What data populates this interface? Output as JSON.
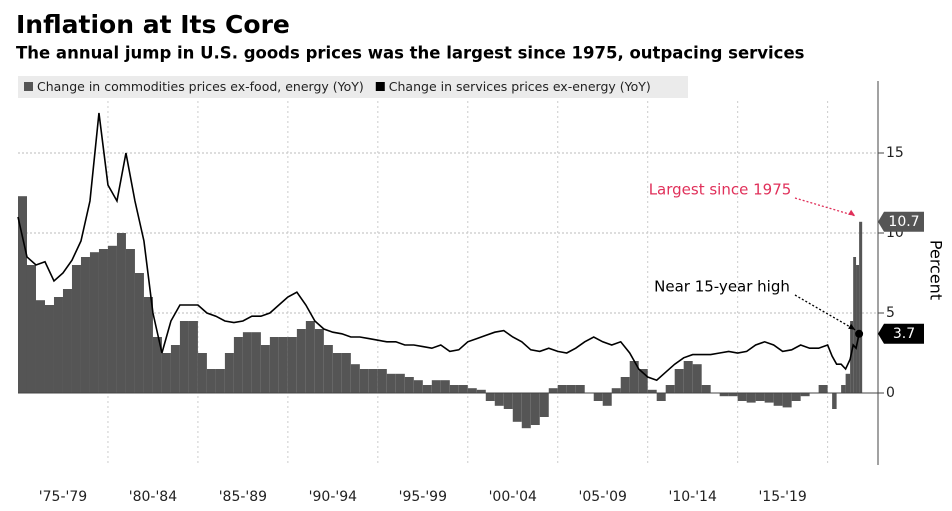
{
  "chart_data": {
    "type": "bar-line",
    "title": "Inflation at Its Core",
    "subtitle": "The annual jump in U.S. goods prices was the largest since 1975, outpacing services",
    "y_label": "Percent",
    "x": [
      1975.0,
      1975.5,
      1976.0,
      1976.5,
      1977.0,
      1977.5,
      1978.0,
      1978.5,
      1979.0,
      1979.5,
      1980.0,
      1980.5,
      1981.0,
      1981.5,
      1982.0,
      1982.5,
      1983.0,
      1983.5,
      1984.0,
      1984.5,
      1985.0,
      1985.5,
      1986.0,
      1986.5,
      1987.0,
      1987.5,
      1988.0,
      1988.5,
      1989.0,
      1989.5,
      1990.0,
      1990.5,
      1991.0,
      1991.5,
      1992.0,
      1992.5,
      1993.0,
      1993.5,
      1994.0,
      1994.5,
      1995.0,
      1995.5,
      1996.0,
      1996.5,
      1997.0,
      1997.5,
      1998.0,
      1998.5,
      1999.0,
      1999.5,
      2000.0,
      2000.5,
      2001.0,
      2001.5,
      2002.0,
      2002.5,
      2003.0,
      2003.5,
      2004.0,
      2004.5,
      2005.0,
      2005.5,
      2006.0,
      2006.5,
      2007.0,
      2007.5,
      2008.0,
      2008.5,
      2009.0,
      2009.5,
      2010.0,
      2010.5,
      2011.0,
      2011.5,
      2012.0,
      2012.5,
      2013.0,
      2013.5,
      2014.0,
      2014.5,
      2015.0,
      2015.5,
      2016.0,
      2016.5,
      2017.0,
      2017.5,
      2018.0,
      2018.5,
      2019.0,
      2019.5,
      2020.0,
      2020.25,
      2020.5,
      2020.75,
      2021.0,
      2021.25,
      2021.42,
      2021.58,
      2021.75
    ],
    "series": [
      {
        "name": "Change in commodities prices ex-food, energy (YoY)",
        "kind": "bar",
        "color": "#555555",
        "values": [
          12.3,
          8.0,
          5.8,
          5.5,
          6.0,
          6.5,
          8.0,
          8.5,
          8.8,
          9.0,
          9.2,
          10.0,
          9.0,
          7.5,
          6.0,
          3.5,
          2.5,
          3.0,
          4.5,
          4.5,
          2.5,
          1.5,
          1.5,
          2.5,
          3.5,
          3.8,
          3.8,
          3.0,
          3.5,
          3.5,
          3.5,
          4.0,
          4.5,
          4.0,
          3.0,
          2.5,
          2.5,
          1.8,
          1.5,
          1.5,
          1.5,
          1.2,
          1.2,
          1.0,
          0.8,
          0.5,
          0.8,
          0.8,
          0.5,
          0.5,
          0.3,
          0.2,
          -0.5,
          -0.8,
          -1.0,
          -1.8,
          -2.2,
          -2.0,
          -1.5,
          0.3,
          0.5,
          0.5,
          0.5,
          0.0,
          -0.5,
          -0.8,
          0.3,
          1.0,
          2.0,
          1.5,
          0.2,
          -0.5,
          0.5,
          1.5,
          2.0,
          1.8,
          0.5,
          0.0,
          -0.2,
          -0.2,
          -0.5,
          -0.6,
          -0.5,
          -0.6,
          -0.8,
          -0.9,
          -0.5,
          -0.2,
          0.0,
          0.5,
          0.0,
          -1.0,
          0.0,
          0.5,
          1.2,
          4.5,
          8.5,
          8.0,
          10.7
        ]
      },
      {
        "name": "Change in services prices ex-energy (YoY)",
        "kind": "line",
        "color": "#000000",
        "values": [
          11.0,
          8.5,
          8.0,
          8.2,
          7.0,
          7.5,
          8.3,
          9.5,
          12.0,
          17.5,
          13.0,
          12.0,
          15.0,
          12.0,
          9.5,
          5.0,
          2.5,
          4.5,
          5.5,
          5.5,
          5.5,
          5.0,
          4.8,
          4.5,
          4.4,
          4.5,
          4.8,
          4.8,
          5.0,
          5.5,
          6.0,
          6.3,
          5.5,
          4.5,
          4.0,
          3.8,
          3.7,
          3.5,
          3.5,
          3.4,
          3.3,
          3.2,
          3.2,
          3.0,
          3.0,
          2.9,
          2.8,
          3.0,
          2.6,
          2.7,
          3.2,
          3.4,
          3.6,
          3.8,
          3.9,
          3.5,
          3.2,
          2.7,
          2.6,
          2.8,
          2.6,
          2.5,
          2.8,
          3.2,
          3.5,
          3.2,
          3.0,
          3.2,
          2.5,
          1.5,
          1.0,
          0.8,
          1.3,
          1.8,
          2.2,
          2.4,
          2.4,
          2.4,
          2.5,
          2.6,
          2.5,
          2.6,
          3.0,
          3.2,
          3.0,
          2.6,
          2.7,
          3.0,
          2.8,
          2.8,
          3.0,
          2.3,
          1.8,
          1.8,
          1.5,
          2.1,
          3.0,
          2.8,
          3.7
        ]
      }
    ],
    "xlim": [
      1975,
      2022.8
    ],
    "xticks": [
      {
        "value": 1977.5,
        "label": "'75-'79"
      },
      {
        "value": 1982.5,
        "label": "'80-'84"
      },
      {
        "value": 1987.5,
        "label": "'85-'89"
      },
      {
        "value": 1992.5,
        "label": "'90-'94"
      },
      {
        "value": 1997.5,
        "label": "'95-'99"
      },
      {
        "value": 2002.5,
        "label": "'00-'04"
      },
      {
        "value": 2007.5,
        "label": "'05-'09"
      },
      {
        "value": 2012.5,
        "label": "'10-'14"
      },
      {
        "value": 2017.5,
        "label": "'15-'19"
      }
    ],
    "xgrid": [
      1980,
      1985,
      1990,
      1995,
      2000,
      2005,
      2010,
      2015,
      2020
    ],
    "ylim": [
      -4.5,
      19.5
    ],
    "yticks": [
      0,
      5,
      10,
      15
    ],
    "grid": true,
    "annotations": [
      {
        "text": "Largest since 1975",
        "color": "#e0305a",
        "series": 0
      },
      {
        "text": "Near 15-year high",
        "color": "#000000",
        "series": 1
      }
    ]
  }
}
